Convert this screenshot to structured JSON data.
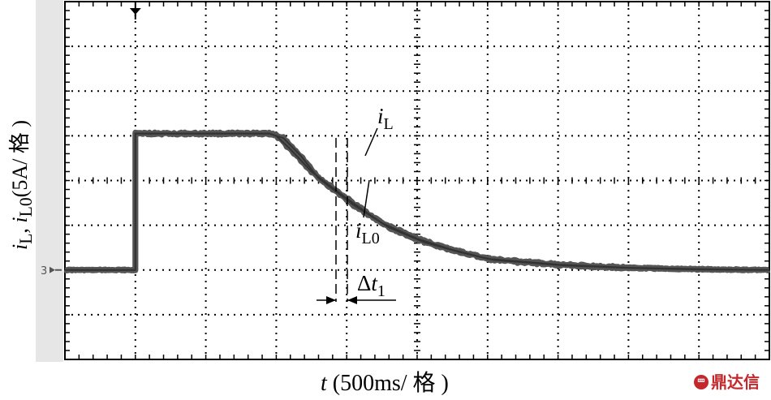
{
  "chart_data": {
    "type": "line",
    "ylabel": "i_L, i_L0(5A/ 格 )",
    "xlabel": "t (500ms/ 格 )",
    "divisions": {
      "x": 10,
      "y": 8
    },
    "ground_marker": "3",
    "series": [
      {
        "name": "i_L",
        "x": [
          0,
          1,
          1.0,
          2.9,
          3.0,
          3.2,
          3.5,
          4.0,
          4.5,
          5.0,
          5.5,
          6.0,
          7.0,
          8.0,
          9.0,
          10.0
        ],
        "y": [
          0,
          0,
          3.05,
          3.05,
          3.0,
          2.7,
          2.2,
          1.6,
          1.05,
          0.7,
          0.45,
          0.25,
          0.12,
          0.05,
          0.02,
          0.0
        ]
      },
      {
        "name": "i_L0",
        "x": [
          0,
          1,
          1.0,
          2.9,
          3.1,
          3.35,
          3.6,
          4.1,
          4.6,
          5.1,
          5.6,
          6.1,
          7.1,
          8.1,
          9.0,
          10.0
        ],
        "y": [
          0,
          0,
          3.05,
          3.05,
          2.95,
          2.55,
          2.05,
          1.45,
          0.95,
          0.62,
          0.4,
          0.22,
          0.1,
          0.04,
          0.01,
          0.0
        ]
      }
    ],
    "annotations": {
      "iL_label": "i",
      "iL_sub": "L",
      "iL0_label": "i",
      "iL0_sub": "L0",
      "dt_label": "Δt",
      "dt_sub": "1"
    }
  },
  "watermark": "鼎达信"
}
